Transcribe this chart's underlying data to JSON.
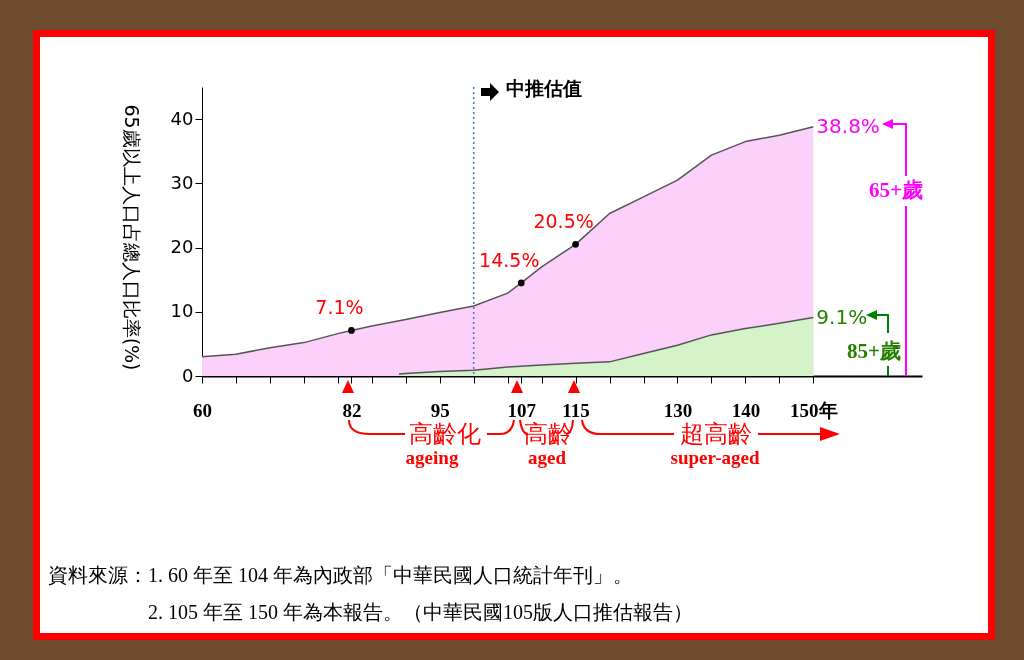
{
  "chart_data": {
    "type": "area",
    "ylabel": "65歲以上人口占總人口比率(%)",
    "xlim": [
      60,
      166
    ],
    "ylim": [
      0,
      45
    ],
    "xticks": [
      60,
      {
        "value": 65,
        "label": null
      },
      {
        "value": 70,
        "label": null
      },
      {
        "value": 75,
        "label": null
      },
      {
        "value": 80,
        "label": null
      },
      82,
      {
        "value": 85,
        "label": null
      },
      {
        "value": 90,
        "label": null
      },
      95,
      {
        "value": 100,
        "label": null
      },
      {
        "value": 105,
        "label": null
      },
      107,
      {
        "value": 110,
        "label": null
      },
      115,
      {
        "value": 120,
        "label": null
      },
      {
        "value": 125,
        "label": null
      },
      130,
      {
        "value": 135,
        "label": null
      },
      140,
      {
        "value": 145,
        "label": null
      },
      {
        "value": 150,
        "label": "150年"
      }
    ],
    "yticks": [
      0,
      10,
      20,
      30,
      40
    ],
    "series": [
      {
        "name": "65+歲",
        "color": "#fbd0fb",
        "x": [
          60,
          65,
          70,
          75,
          80,
          82,
          85,
          90,
          95,
          100,
          105,
          107,
          110,
          115,
          120,
          125,
          130,
          135,
          140,
          145,
          150
        ],
        "values": [
          3.0,
          3.4,
          4.4,
          5.2,
          6.6,
          7.1,
          7.8,
          8.8,
          9.9,
          10.9,
          12.9,
          14.5,
          17.0,
          20.5,
          25.3,
          27.9,
          30.5,
          34.4,
          36.5,
          37.5,
          38.8
        ]
      },
      {
        "name": "85+歲",
        "color": "#d4f3c8",
        "x": [
          89,
          90,
          95,
          100,
          105,
          110,
          115,
          120,
          125,
          130,
          135,
          140,
          145,
          150
        ],
        "values": [
          0.3,
          0.4,
          0.7,
          0.9,
          1.4,
          1.7,
          2.0,
          2.2,
          3.5,
          4.8,
          6.4,
          7.4,
          8.2,
          9.1
        ]
      },
      {
        "type": "scatter",
        "color": "#000000",
        "marker": "circle",
        "x": [
          82,
          107,
          115
        ],
        "values": [
          7.1,
          14.5,
          20.5
        ],
        "value_labels": [
          "7.1%",
          "14.5%",
          "20.5%"
        ]
      }
    ],
    "ref_lines": [
      {
        "axis": "x",
        "value": 100,
        "label": "中推估值",
        "color": "#3a7bd5",
        "line_style": "dotted"
      }
    ],
    "annotations": [
      {
        "text": "38.8%",
        "x": 150,
        "y": 38.8
      },
      {
        "text": "9.1%",
        "x": 150,
        "y": 9.1
      },
      "高齡化",
      "ageing",
      "高齡",
      "aged",
      "超高齡",
      "super-aged",
      "資料來源：1. 60 年至 104 年為內政部「中華民國人口統計年刊」。",
      "2. 105 年至 150 年為本報告。（中華民國105版人口推估報告）"
    ]
  }
}
